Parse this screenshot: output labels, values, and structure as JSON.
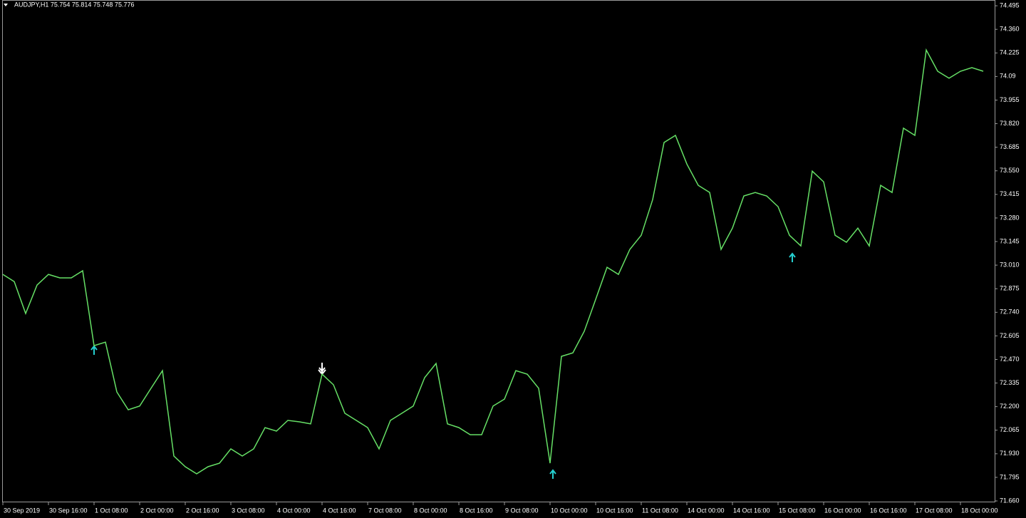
{
  "chart_data": {
    "type": "line",
    "title": "AUDJPY,H1  75.754 75.814 75.748 75.776",
    "color": "#66e066",
    "categories": [
      "30 Sep 2019",
      null,
      null,
      null,
      "30 Sep 16:00",
      null,
      null,
      null,
      "1 Oct 08:00",
      null,
      null,
      null,
      "2 Oct 00:00",
      null,
      null,
      null,
      "2 Oct 16:00",
      null,
      null,
      null,
      "3 Oct 08:00",
      null,
      null,
      null,
      "4 Oct 00:00",
      null,
      null,
      null,
      "4 Oct 16:00",
      null,
      null,
      null,
      "7 Oct 08:00",
      null,
      null,
      null,
      "8 Oct 00:00",
      null,
      null,
      null,
      "8 Oct 16:00",
      null,
      null,
      null,
      "9 Oct 08:00",
      null,
      null,
      null,
      "10 Oct 00:00",
      null,
      null,
      null,
      "10 Oct 16:00",
      null,
      null,
      null,
      "11 Oct 08:00",
      null,
      null,
      null,
      "14 Oct 00:00",
      null,
      null,
      null,
      "14 Oct 16:00",
      null,
      null,
      null,
      "15 Oct 08:00",
      null,
      null,
      null,
      "16 Oct 00:00",
      null,
      null,
      null,
      "16 Oct 16:00",
      null,
      null,
      null,
      "17 Oct 08:00",
      null,
      null,
      null,
      "18 Oct 00:00",
      null,
      null
    ],
    "values": [
      72.957,
      72.916,
      72.733,
      72.896,
      72.957,
      72.937,
      72.937,
      72.978,
      72.549,
      72.569,
      72.284,
      72.182,
      72.203,
      72.305,
      72.406,
      71.917,
      71.856,
      71.815,
      71.856,
      71.876,
      71.958,
      71.917,
      71.958,
      72.08,
      72.06,
      72.121,
      72.113,
      72.101,
      72.386,
      72.325,
      72.162,
      72.121,
      72.08,
      71.958,
      72.121,
      72.162,
      72.203,
      72.366,
      72.447,
      72.101,
      72.08,
      72.039,
      72.039,
      72.203,
      72.243,
      72.406,
      72.386,
      72.305,
      71.876,
      72.488,
      72.508,
      72.631,
      72.814,
      72.998,
      72.957,
      73.1,
      73.181,
      73.385,
      73.712,
      73.753,
      73.589,
      73.467,
      73.426,
      73.1,
      73.222,
      73.406,
      73.426,
      73.406,
      73.345,
      73.181,
      73.12,
      73.548,
      73.487,
      73.181,
      73.141,
      73.222,
      73.12,
      73.467,
      73.426,
      73.794,
      73.753,
      74.242,
      74.12,
      74.08,
      74.12,
      74.141,
      74.12
    ],
    "ylim": [
      71.652,
      74.528
    ],
    "yticks": [
      {
        "value": 71.66,
        "label": "71.660"
      },
      71.795,
      {
        "value": 71.93,
        "label": "71.930"
      },
      72.065,
      {
        "value": 72.2,
        "label": "72.200"
      },
      72.335,
      {
        "value": 72.47,
        "label": "72.470"
      },
      72.605,
      {
        "value": 72.74,
        "label": "72.740"
      },
      72.875,
      {
        "value": 73.01,
        "label": "73.010"
      },
      73.145,
      {
        "value": 73.28,
        "label": "73.280"
      },
      73.415,
      {
        "value": 73.55,
        "label": "73.550"
      },
      73.685,
      {
        "value": 73.82,
        "label": "73.820"
      },
      73.955,
      74.09,
      74.225,
      {
        "value": 74.36,
        "label": "74.360"
      },
      74.495
    ]
  }
}
